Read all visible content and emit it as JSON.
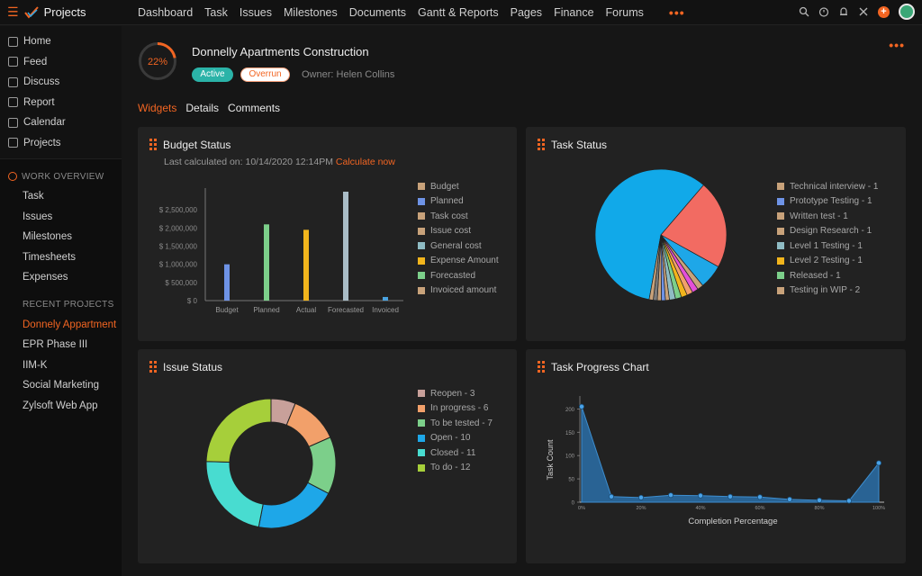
{
  "app": {
    "name": "Projects"
  },
  "nav": {
    "items": [
      "Dashboard",
      "Task",
      "Issues",
      "Milestones",
      "Documents",
      "Gantt & Reports",
      "Pages",
      "Finance",
      "Forums"
    ],
    "more": "•••"
  },
  "sidebar": {
    "top_items": [
      {
        "label": "Home",
        "icon": "home-icon"
      },
      {
        "label": "Feed",
        "icon": "feed-icon"
      },
      {
        "label": "Discuss",
        "icon": "discuss-icon"
      },
      {
        "label": "Report",
        "icon": "report-icon"
      },
      {
        "label": "Calendar",
        "icon": "calendar-icon"
      },
      {
        "label": "Projects",
        "icon": "projects-icon"
      }
    ],
    "work_overview_label": "WORK OVERVIEW",
    "work_items": [
      "Task",
      "Issues",
      "Milestones",
      "Timesheets",
      "Expenses"
    ],
    "recent_label": "RECENT PROJECTS",
    "recent_items": [
      "Donnely Appartment",
      "EPR Phase III",
      "IIM-K",
      "Social Marketing",
      "Zylsoft Web App"
    ]
  },
  "project": {
    "progress": "22%",
    "progress_value": 0.22,
    "title": "Donnelly Apartments Construction",
    "status": "Active",
    "flag": "Overrun",
    "owner": "Owner: Helen Collins",
    "more": "•••"
  },
  "tabs": [
    "Widgets",
    "Details",
    "Comments"
  ],
  "budget": {
    "title": "Budget Status",
    "last_calc": "Last calculated on: 10/14/2020 12:14PM",
    "calc_link": "Calculate now",
    "legend": [
      {
        "label": "Budget",
        "color": "#c8a27a"
      },
      {
        "label": "Planned",
        "color": "#6e93e6"
      },
      {
        "label": "Task cost",
        "color": "#c8a27a"
      },
      {
        "label": "Issue cost",
        "color": "#c8a27a"
      },
      {
        "label": "General cost",
        "color": "#8fbcc4"
      },
      {
        "label": "Expense Amount",
        "color": "#f2b51c"
      },
      {
        "label": "Forecasted",
        "color": "#7ccf8a"
      },
      {
        "label": "Invoiced amount",
        "color": "#c8a27a"
      }
    ]
  },
  "task_status": {
    "title": "Task Status",
    "legend": [
      {
        "label": "Technical interview - 1",
        "color": "#c8a27a"
      },
      {
        "label": "Prototype Testing - 1",
        "color": "#6e93e6"
      },
      {
        "label": "Written test - 1",
        "color": "#c8a27a"
      },
      {
        "label": "Design Research - 1",
        "color": "#c8a27a"
      },
      {
        "label": "Level 1 Testing - 1",
        "color": "#8fbcc4"
      },
      {
        "label": "Level 2 Testing - 1",
        "color": "#f2b51c"
      },
      {
        "label": "Released - 1",
        "color": "#7ccf8a"
      },
      {
        "label": "Testing in WIP - 2",
        "color": "#c8a27a"
      }
    ]
  },
  "issue_status": {
    "title": "Issue Status",
    "legend": [
      {
        "label": "Reopen - 3",
        "color": "#c8a09a"
      },
      {
        "label": "In progress - 6",
        "color": "#f2a06a"
      },
      {
        "label": "To be tested - 7",
        "color": "#7ccf8a"
      },
      {
        "label": "Open - 10",
        "color": "#1ea7e8"
      },
      {
        "label": "Closed - 11",
        "color": "#48dcd0"
      },
      {
        "label": "To do - 12",
        "color": "#a6cf3a"
      }
    ]
  },
  "task_progress": {
    "title": "Task Progress Chart"
  },
  "chart_data": [
    {
      "type": "bar",
      "categories": [
        "Budget",
        "Planned",
        "Actual",
        "Forecasted",
        "Invoiced"
      ],
      "values": [
        1000000,
        2100000,
        1950000,
        3000000,
        100000
      ],
      "colors": [
        "#6e93e6",
        "#7ccf8a",
        "#f2b51c",
        "#a9bcc6",
        "#4aa3e0"
      ],
      "yticks": [
        "$ 2,500,000",
        "$ 2,000,000",
        "$ 1,500,000",
        "$ 1,000,000",
        "$ 500,000",
        "$ 0"
      ],
      "ylim": [
        0,
        3000000
      ],
      "grid": false
    },
    {
      "type": "pie",
      "values": [
        59,
        22,
        6,
        1.5,
        1.5,
        1.5,
        1.5,
        1.5,
        1.5,
        1,
        1,
        1,
        1,
        1
      ],
      "colors": [
        "#11a9e9",
        "#f26b62",
        "#1ea7e8",
        "#c8a27a",
        "#e44fd8",
        "#f2a06a",
        "#f2b51c",
        "#7ccf8a",
        "#8fbcc4",
        "#c8a27a",
        "#6e93e6",
        "#c8a27a",
        "#7a7a7a",
        "#c8a27a"
      ]
    },
    {
      "type": "pie",
      "donut": true,
      "values": [
        3,
        6,
        7,
        10,
        11,
        12
      ],
      "colors": [
        "#c8a09a",
        "#f2a06a",
        "#7ccf8a",
        "#1ea7e8",
        "#48dcd0",
        "#a6cf3a"
      ]
    },
    {
      "type": "area",
      "x": [
        0,
        10,
        20,
        30,
        40,
        50,
        60,
        70,
        80,
        90,
        100
      ],
      "values": [
        205,
        12,
        10,
        15,
        14,
        12,
        11,
        6,
        4,
        3,
        84
      ],
      "xticks": [
        "0%",
        "20%",
        "40%",
        "60%",
        "80%",
        "100%"
      ],
      "yticks": [
        "0",
        "50",
        "100",
        "150",
        "200"
      ],
      "ylim": [
        0,
        220
      ],
      "xlabel": "Completion Percentage",
      "ylabel": "Task Count",
      "color": "#2a6ea8"
    }
  ]
}
